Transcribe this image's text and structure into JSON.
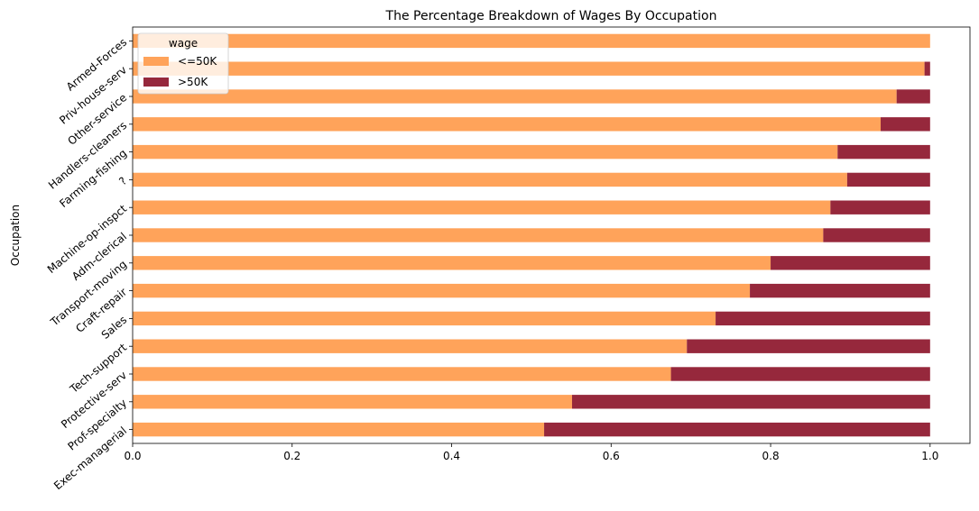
{
  "chart_data": {
    "type": "bar",
    "orientation": "horizontal",
    "stacked": true,
    "title": "The Percentage Breakdown of Wages By Occupation",
    "xlabel": "",
    "ylabel": "Occupation",
    "xlim": [
      0,
      1.05
    ],
    "x_ticks": [
      "0.0",
      "0.2",
      "0.4",
      "0.6",
      "0.8",
      "1.0"
    ],
    "grid": false,
    "categories": [
      "Exec-managerial",
      "Prof-specialty",
      "Protective-serv",
      "Tech-support",
      "Sales",
      "Craft-repair",
      "Transport-moving",
      "Adm-clerical",
      "Machine-op-inspct",
      "?",
      "Farming-fishing",
      "Handlers-cleaners",
      "Other-service",
      "Priv-house-serv",
      "Armed-Forces"
    ],
    "series": [
      {
        "name": "<=50K",
        "color": "#FFA35A",
        "values": [
          0.516,
          0.551,
          0.675,
          0.695,
          0.731,
          0.774,
          0.8,
          0.866,
          0.875,
          0.896,
          0.884,
          0.938,
          0.958,
          0.993,
          1.0
        ]
      },
      {
        "name": ">50K",
        "color": "#96283C",
        "values": [
          0.484,
          0.449,
          0.325,
          0.305,
          0.269,
          0.226,
          0.2,
          0.134,
          0.125,
          0.104,
          0.116,
          0.062,
          0.042,
          0.007,
          0.0
        ]
      }
    ],
    "legend": {
      "title": "wage",
      "position": "top-left"
    }
  }
}
